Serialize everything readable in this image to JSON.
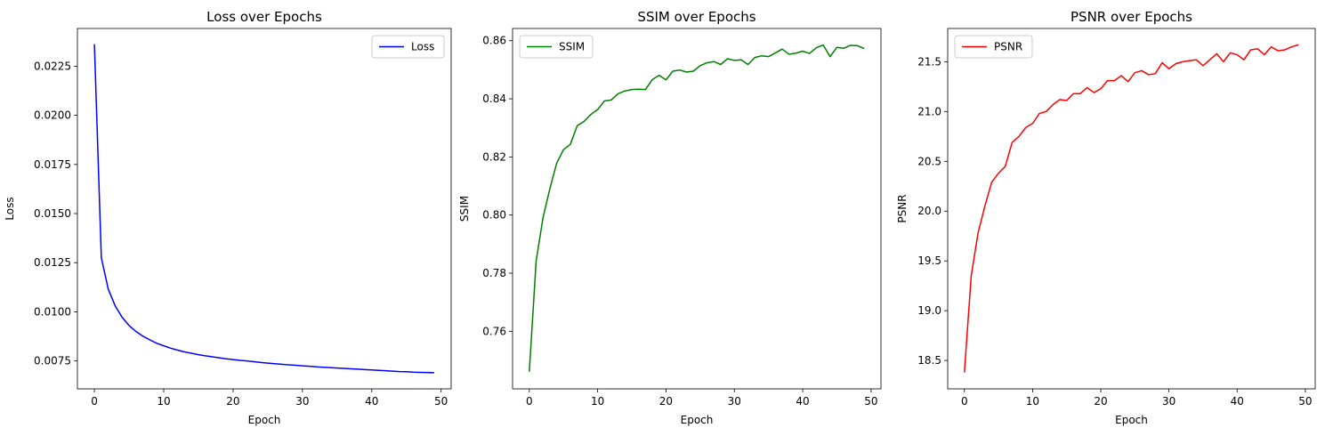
{
  "chart_data": [
    {
      "type": "line",
      "title": "Loss over Epochs",
      "xlabel": "Epoch",
      "ylabel": "Loss",
      "xlim": [
        -2.45,
        51.45
      ],
      "ylim": [
        0.00608,
        0.02442
      ],
      "xticks": [
        0,
        10,
        20,
        30,
        40,
        50
      ],
      "xtick_labels": [
        "0",
        "10",
        "20",
        "30",
        "40",
        "50"
      ],
      "yticks": [
        0.0075,
        0.01,
        0.0125,
        0.015,
        0.0175,
        0.02,
        0.0225
      ],
      "ytick_labels": [
        "0.0075",
        "0.0100",
        "0.0125",
        "0.0150",
        "0.0175",
        "0.0200",
        "0.0225"
      ],
      "grid": false,
      "legend_position": "upper right",
      "series": [
        {
          "name": "Loss",
          "color": "#0000ff",
          "x": [
            0,
            1,
            2,
            3,
            4,
            5,
            6,
            7,
            8,
            9,
            10,
            11,
            12,
            13,
            14,
            15,
            16,
            17,
            18,
            19,
            20,
            21,
            22,
            23,
            24,
            25,
            26,
            27,
            28,
            29,
            30,
            31,
            32,
            33,
            34,
            35,
            36,
            37,
            38,
            39,
            40,
            41,
            42,
            43,
            44,
            45,
            46,
            47,
            48,
            49
          ],
          "values": [
            0.02362,
            0.01275,
            0.01115,
            0.0103,
            0.00972,
            0.0093,
            0.009,
            0.00876,
            0.00857,
            0.0084,
            0.00827,
            0.00815,
            0.00805,
            0.00796,
            0.00789,
            0.00782,
            0.00776,
            0.00771,
            0.00766,
            0.00761,
            0.00757,
            0.00753,
            0.0075,
            0.00746,
            0.00742,
            0.00739,
            0.00736,
            0.00733,
            0.0073,
            0.00728,
            0.00725,
            0.00723,
            0.0072,
            0.00718,
            0.00716,
            0.00714,
            0.00712,
            0.0071,
            0.00708,
            0.00706,
            0.00704,
            0.00702,
            0.007,
            0.00698,
            0.00696,
            0.00695,
            0.00693,
            0.00692,
            0.00691,
            0.0069
          ]
        }
      ]
    },
    {
      "type": "line",
      "title": "SSIM over Epochs",
      "xlabel": "Epoch",
      "ylabel": "SSIM",
      "xlim": [
        -2.45,
        51.45
      ],
      "ylim": [
        0.7402,
        0.8642
      ],
      "xticks": [
        0,
        10,
        20,
        30,
        40,
        50
      ],
      "xtick_labels": [
        "0",
        "10",
        "20",
        "30",
        "40",
        "50"
      ],
      "yticks": [
        0.76,
        0.78,
        0.8,
        0.82,
        0.84,
        0.86
      ],
      "ytick_labels": [
        "0.76",
        "0.78",
        "0.80",
        "0.82",
        "0.84",
        "0.86"
      ],
      "grid": false,
      "legend_position": "upper left",
      "series": [
        {
          "name": "SSIM",
          "color": "#008000",
          "x": [
            0,
            1,
            2,
            3,
            4,
            5,
            6,
            7,
            8,
            9,
            10,
            11,
            12,
            13,
            14,
            15,
            16,
            17,
            18,
            19,
            20,
            21,
            22,
            23,
            24,
            25,
            26,
            27,
            28,
            29,
            30,
            31,
            32,
            33,
            34,
            35,
            36,
            37,
            38,
            39,
            40,
            41,
            42,
            43,
            44,
            45,
            46,
            47,
            48,
            49
          ],
          "values": [
            0.7461,
            0.7842,
            0.799,
            0.809,
            0.8178,
            0.8225,
            0.8243,
            0.8307,
            0.8322,
            0.8346,
            0.8363,
            0.8393,
            0.8396,
            0.8418,
            0.8427,
            0.8432,
            0.8433,
            0.8432,
            0.8466,
            0.8481,
            0.8465,
            0.8495,
            0.8499,
            0.8492,
            0.8495,
            0.8514,
            0.8524,
            0.8528,
            0.8518,
            0.8538,
            0.8532,
            0.8534,
            0.8518,
            0.8542,
            0.8548,
            0.8545,
            0.8558,
            0.8571,
            0.8553,
            0.8557,
            0.8564,
            0.8556,
            0.8576,
            0.8585,
            0.8545,
            0.8577,
            0.8574,
            0.8584,
            0.8583,
            0.8573
          ]
        }
      ]
    },
    {
      "type": "line",
      "title": "PSNR over Epochs",
      "xlabel": "Epoch",
      "ylabel": "PSNR",
      "xlim": [
        -2.45,
        51.45
      ],
      "ylim": [
        18.215,
        21.834
      ],
      "xticks": [
        0,
        10,
        20,
        30,
        40,
        50
      ],
      "xtick_labels": [
        "0",
        "10",
        "20",
        "30",
        "40",
        "50"
      ],
      "yticks": [
        18.5,
        19.0,
        19.5,
        20.0,
        20.5,
        21.0,
        21.5
      ],
      "ytick_labels": [
        "18.5",
        "19.0",
        "19.5",
        "20.0",
        "20.5",
        "21.0",
        "21.5"
      ],
      "grid": false,
      "legend_position": "upper left",
      "series": [
        {
          "name": "PSNR",
          "color": "#ff0000",
          "x": [
            0,
            1,
            2,
            3,
            4,
            5,
            6,
            7,
            8,
            9,
            10,
            11,
            12,
            13,
            14,
            15,
            16,
            17,
            18,
            19,
            20,
            21,
            22,
            23,
            24,
            25,
            26,
            27,
            28,
            29,
            30,
            31,
            32,
            33,
            34,
            35,
            36,
            37,
            38,
            39,
            40,
            41,
            42,
            43,
            44,
            45,
            46,
            47,
            48,
            49
          ],
          "values": [
            18.38,
            19.35,
            19.78,
            20.05,
            20.29,
            20.38,
            20.45,
            20.69,
            20.75,
            20.84,
            20.88,
            20.98,
            21.0,
            21.07,
            21.12,
            21.11,
            21.18,
            21.18,
            21.24,
            21.19,
            21.23,
            21.31,
            21.31,
            21.36,
            21.3,
            21.39,
            21.41,
            21.37,
            21.38,
            21.49,
            21.43,
            21.48,
            21.5,
            21.51,
            21.52,
            21.46,
            21.52,
            21.58,
            21.5,
            21.59,
            21.57,
            21.52,
            21.62,
            21.63,
            21.57,
            21.65,
            21.61,
            21.62,
            21.65,
            21.67
          ]
        }
      ]
    }
  ]
}
